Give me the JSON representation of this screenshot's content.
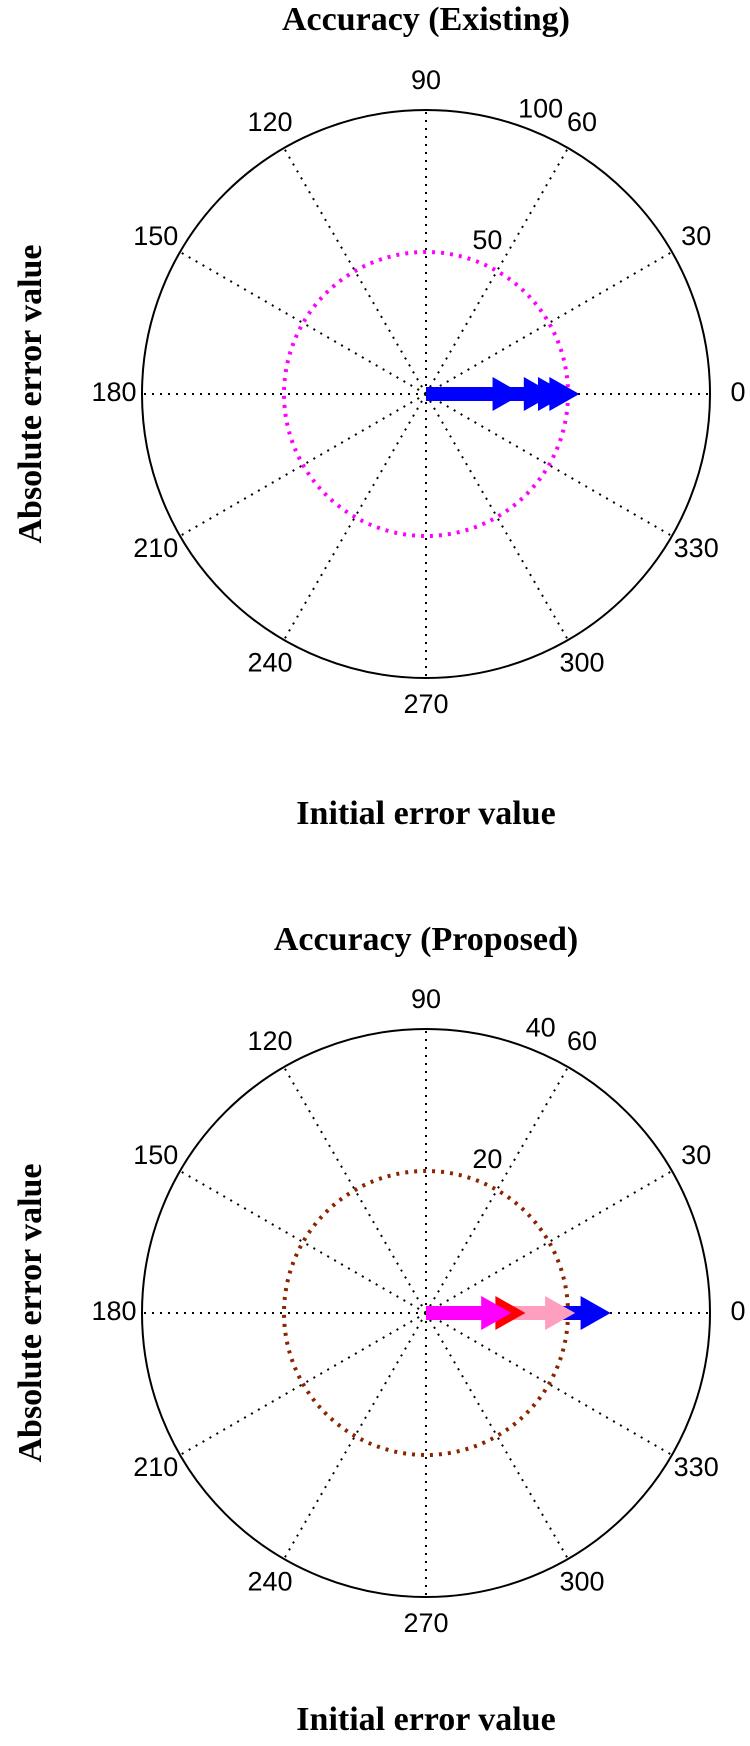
{
  "chart_data": [
    {
      "type": "polar",
      "title": "Accuracy (Existing)",
      "x_label": "Initial error value",
      "y_label": "Absolute error value",
      "theta_ticks": [
        0,
        30,
        60,
        90,
        120,
        150,
        180,
        210,
        240,
        270,
        300,
        330
      ],
      "rlim": [
        0,
        100
      ],
      "rticks": [
        50,
        100
      ],
      "rgrid_color": "#ff00ff",
      "series": [
        {
          "color": "#0000ff",
          "theta": [
            0,
            0,
            0,
            0
          ],
          "values": [
            34,
            45,
            50,
            54
          ]
        }
      ]
    },
    {
      "type": "polar",
      "title": "Accuracy (Proposed)",
      "x_label": "Initial error value",
      "y_label": "Absolute error value",
      "theta_ticks": [
        0,
        30,
        60,
        90,
        120,
        150,
        180,
        210,
        240,
        270,
        300,
        330
      ],
      "rlim": [
        0,
        40
      ],
      "rticks": [
        20,
        40
      ],
      "rgrid_color": "#8b2500",
      "series": [
        {
          "color": "#0000ff",
          "theta": [
            0
          ],
          "values": [
            26
          ]
        },
        {
          "color": "#ff9fc0",
          "theta": [
            0
          ],
          "values": [
            21
          ]
        },
        {
          "color": "#ff0000",
          "theta": [
            0
          ],
          "values": [
            14
          ]
        },
        {
          "color": "#ff00ff",
          "theta": [
            0
          ],
          "values": [
            12
          ]
        }
      ]
    }
  ]
}
